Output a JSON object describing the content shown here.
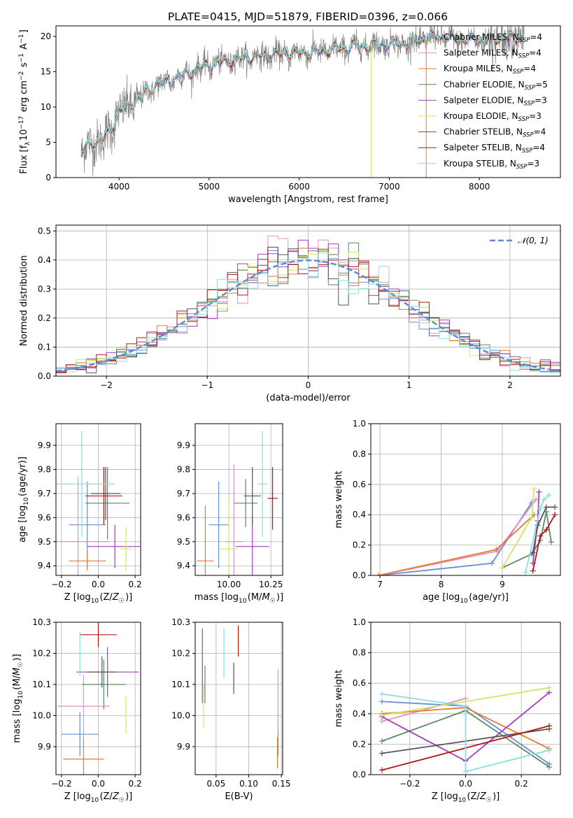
{
  "title": "PLATE=0415, MJD=51879, FIBERID=0396, z=0.066",
  "models": [
    {
      "name": "Chabrier MILES, N_SSP=4",
      "base": "Chabrier MILES, N",
      "sub": "SSP",
      "tail": "=4",
      "color": "#6a8dd6"
    },
    {
      "name": "Salpeter MILES, N_SSP=4",
      "base": "Salpeter MILES, N",
      "sub": "SSP",
      "tail": "=4",
      "color": "#e68fc6"
    },
    {
      "name": "Kroupa MILES, N_SSP=4",
      "base": "Kroupa MILES, N",
      "sub": "SSP",
      "tail": "=4",
      "color": "#e67a2e"
    },
    {
      "name": "Chabrier ELODIE, N_SSP=5",
      "base": "Chabrier ELODIE, N",
      "sub": "SSP",
      "tail": "=5",
      "color": "#5a8a66"
    },
    {
      "name": "Salpeter ELODIE, N_SSP=3",
      "base": "Salpeter ELODIE, N",
      "sub": "SSP",
      "tail": "=3",
      "color": "#a040b8"
    },
    {
      "name": "Kroupa ELODIE, N_SSP=3",
      "base": "Kroupa ELODIE, N",
      "sub": "SSP",
      "tail": "=3",
      "color": "#cfe660"
    },
    {
      "name": "Chabrier STELIB, N_SSP=4",
      "base": "Chabrier STELIB, N",
      "sub": "SSP",
      "tail": "=4",
      "color": "#555555"
    },
    {
      "name": "Salpeter STELIB, N_SSP=4",
      "base": "Salpeter STELIB, N",
      "sub": "SSP",
      "tail": "=4",
      "color": "#b01818"
    },
    {
      "name": "Kroupa STELIB, N_SSP=3",
      "base": "Kroupa STELIB, N",
      "sub": "SSP",
      "tail": "=3",
      "color": "#88dde0"
    }
  ],
  "chart_data": [
    {
      "id": "spectrum",
      "type": "line",
      "xlabel": "wavelength [Angstrom, rest frame]",
      "ylabel": "Flux [f_λ10^-17 erg cm^-2 s^-1 A^-1]",
      "xlim": [
        3300,
        8900
      ],
      "ylim": [
        0,
        21.5
      ],
      "xticks": [
        4000,
        5000,
        6000,
        7000,
        8000
      ],
      "yticks": [
        0,
        5,
        10,
        15,
        20
      ],
      "data_color": "#808080",
      "model_color": "#88dde0",
      "continuum": [
        [
          3580,
          3.5
        ],
        [
          3700,
          5
        ],
        [
          3800,
          5.2
        ],
        [
          3900,
          6.5
        ],
        [
          4000,
          9.5
        ],
        [
          4100,
          10
        ],
        [
          4200,
          11
        ],
        [
          4400,
          13
        ],
        [
          4600,
          14
        ],
        [
          4800,
          15
        ],
        [
          5000,
          16
        ],
        [
          5200,
          16.5
        ],
        [
          5400,
          17
        ],
        [
          5800,
          17.5
        ],
        [
          6200,
          17.8
        ],
        [
          6600,
          18.5
        ],
        [
          7000,
          19
        ],
        [
          7200,
          19
        ],
        [
          7500,
          20
        ],
        [
          7800,
          19.5
        ],
        [
          8200,
          19.6
        ],
        [
          8500,
          19.9
        ]
      ],
      "grid": false,
      "legend": "upper right"
    },
    {
      "id": "residuals",
      "type": "histogram",
      "xlabel": "(data-model)/error",
      "ylabel": "Normed distribution",
      "xlim": [
        -2.5,
        2.5
      ],
      "ylim": [
        0,
        0.52
      ],
      "xticks": [
        -2,
        -1,
        0,
        1,
        2
      ],
      "yticks": [
        0,
        0.1,
        0.2,
        0.3,
        0.4,
        0.5
      ],
      "bin_width": 0.1,
      "reference_curve": {
        "name": "N(0,1)",
        "color": "#5b8dd6"
      },
      "grid": true,
      "legend": "upper right"
    },
    {
      "id": "age-vs-metallicity",
      "type": "scatter",
      "xlabel": "Z [log10(Z/Z☉)]",
      "ylabel": "age [log10(age/yr)]",
      "xlim": [
        -0.23,
        0.23
      ],
      "ylim": [
        9.36,
        9.99
      ],
      "xticks": [
        -0.2,
        0.0,
        0.2
      ],
      "yticks": [
        9.4,
        9.5,
        9.6,
        9.7,
        9.8,
        9.9
      ],
      "grid": true,
      "points": [
        {
          "x": -0.06,
          "y": 9.57,
          "xerr": 0.1,
          "yerr": 0.18
        },
        {
          "x": -0.11,
          "y": 9.5,
          "xerr": 0.17,
          "yerr": 0.27
        },
        {
          "x": -0.06,
          "y": 9.42,
          "xerr": 0.1,
          "yerr": 0.04
        },
        {
          "x": 0.05,
          "y": 9.66,
          "xerr": 0.12,
          "yerr": 0.15
        },
        {
          "x": 0.09,
          "y": 9.48,
          "xerr": 0.15,
          "yerr": 0.09
        },
        {
          "x": 0.15,
          "y": 9.47,
          "xerr": 0.03,
          "yerr": 0.09
        },
        {
          "x": 0.04,
          "y": 9.7,
          "xerr": 0.08,
          "yerr": 0.11
        },
        {
          "x": 0.03,
          "y": 9.69,
          "xerr": 0.1,
          "yerr": 0.12
        },
        {
          "x": -0.09,
          "y": 9.74,
          "xerr": 0.18,
          "yerr": 0.22
        }
      ]
    },
    {
      "id": "age-vs-mass",
      "type": "scatter",
      "xlabel": "mass [log10(M/M☉)]",
      "ylabel": "",
      "xlim": [
        9.8,
        10.32
      ],
      "ylim": [
        9.36,
        9.99
      ],
      "xticks": [
        10.0,
        10.25
      ],
      "yticks": [
        9.4,
        9.5,
        9.6,
        9.7,
        9.8,
        9.9
      ],
      "grid": true,
      "points": [
        {
          "x": 9.94,
          "y": 9.57,
          "xerr": 0.06,
          "yerr": 0.18
        },
        {
          "x": 10.03,
          "y": 9.5,
          "xerr": 0.05,
          "yerr": 0.32
        },
        {
          "x": 9.86,
          "y": 9.42,
          "xerr": 0.05,
          "yerr": 0.23
        },
        {
          "x": 10.1,
          "y": 9.66,
          "xerr": 0.07,
          "yerr": 0.1
        },
        {
          "x": 10.14,
          "y": 9.48,
          "xerr": 0.1,
          "yerr": 0.13
        },
        {
          "x": 10.0,
          "y": 9.47,
          "xerr": 0.05,
          "yerr": 0.2
        },
        {
          "x": 10.14,
          "y": 9.69,
          "xerr": 0.05,
          "yerr": 0.12
        },
        {
          "x": 10.26,
          "y": 9.68,
          "xerr": 0.03,
          "yerr": 0.13
        },
        {
          "x": 10.2,
          "y": 9.74,
          "xerr": 0.03,
          "yerr": 0.22
        }
      ]
    },
    {
      "id": "mass-weight-vs-age",
      "type": "line",
      "xlabel": "age [log10(age/yr)]",
      "ylabel": "mass weight",
      "xlim": [
        6.85,
        9.95
      ],
      "ylim": [
        0,
        1
      ],
      "xticks": [
        7,
        8,
        9
      ],
      "yticks": [
        0,
        0.2,
        0.4,
        0.6,
        0.8,
        1.0
      ],
      "grid": true,
      "series": [
        {
          "x": [
            6.98,
            8.83,
            9.48
          ],
          "y": [
            0.0,
            0.08,
            0.48
          ]
        },
        {
          "x": [
            6.98,
            8.92,
            9.55
          ],
          "y": [
            0.0,
            0.16,
            0.5
          ]
        },
        {
          "x": [
            6.98,
            8.9,
            9.52
          ],
          "y": [
            0.0,
            0.17,
            0.4
          ]
        },
        {
          "x": [
            9.0,
            9.48,
            9.62,
            9.72,
            9.8
          ],
          "y": [
            0.05,
            0.14,
            0.23,
            0.42,
            0.22
          ]
        },
        {
          "x": [
            9.5,
            9.58,
            9.6
          ],
          "y": [
            0.08,
            0.36,
            0.55
          ]
        },
        {
          "x": [
            9.0,
            9.48,
            9.52
          ],
          "y": [
            0.05,
            0.38,
            0.57
          ]
        },
        {
          "x": [
            9.5,
            9.58,
            9.72,
            9.86
          ],
          "y": [
            0.15,
            0.33,
            0.45,
            0.45
          ]
        },
        {
          "x": [
            9.5,
            9.62,
            9.72,
            9.86
          ],
          "y": [
            0.03,
            0.26,
            0.3,
            0.4
          ]
        },
        {
          "x": [
            9.38,
            9.62,
            9.68,
            9.76
          ],
          "y": [
            0.02,
            0.44,
            0.5,
            0.53
          ]
        }
      ]
    },
    {
      "id": "mass-vs-metallicity",
      "type": "scatter",
      "xlabel": "Z [log10(Z/Z☉)]",
      "ylabel": "mass [log10(M/M☉)]",
      "xlim": [
        -0.23,
        0.23
      ],
      "ylim": [
        9.81,
        10.3
      ],
      "xticks": [
        -0.2,
        0.0,
        0.2
      ],
      "yticks": [
        9.9,
        10.0,
        10.1,
        10.2,
        10.3
      ],
      "grid": true,
      "points": [
        {
          "x": -0.1,
          "y": 9.94,
          "xerr": 0.1,
          "yerr": 0.07
        },
        {
          "x": -0.08,
          "y": 10.03,
          "xerr": 0.14,
          "yerr": 0.1
        },
        {
          "x": -0.08,
          "y": 9.86,
          "xerr": 0.11,
          "yerr": 0.07
        },
        {
          "x": 0.03,
          "y": 10.1,
          "xerr": 0.12,
          "yerr": 0.08
        },
        {
          "x": 0.05,
          "y": 10.14,
          "xerr": 0.17,
          "yerr": 0.08
        },
        {
          "x": 0.15,
          "y": 10.0,
          "xerr": 0.06,
          "yerr": 0.06
        },
        {
          "x": 0.02,
          "y": 10.14,
          "xerr": 0.08,
          "yerr": 0.05
        },
        {
          "x": 0.0,
          "y": 10.26,
          "xerr": 0.1,
          "yerr": 0.04
        },
        {
          "x": -0.1,
          "y": 10.2,
          "xerr": 0.1,
          "yerr": 0.07
        }
      ]
    },
    {
      "id": "mass-vs-extinction",
      "type": "scatter",
      "xlabel": "E(B-V)",
      "ylabel": "",
      "xlim": [
        0.018,
        0.152
      ],
      "ylim": [
        9.81,
        10.3
      ],
      "xticks": [
        0.05,
        0.1,
        0.15
      ],
      "yticks": [
        9.9,
        10.0,
        10.1,
        10.2,
        10.3
      ],
      "grid": true,
      "points": [
        {
          "x": 0.145,
          "y": 9.94,
          "yerr": 0.07
        },
        {
          "x": 0.145,
          "y": 10.05,
          "yerr": 0.1
        },
        {
          "x": 0.144,
          "y": 9.88,
          "yerr": 0.05
        },
        {
          "x": 0.033,
          "y": 10.1,
          "yerr": 0.06
        },
        {
          "x": 0.029,
          "y": 10.16,
          "yerr": 0.12
        },
        {
          "x": 0.031,
          "y": 10.03,
          "yerr": 0.07
        },
        {
          "x": 0.077,
          "y": 10.12,
          "yerr": 0.05
        },
        {
          "x": 0.084,
          "y": 10.24,
          "yerr": 0.05
        },
        {
          "x": 0.062,
          "y": 10.2,
          "yerr": 0.08
        }
      ]
    },
    {
      "id": "mass-weight-vs-metallicity",
      "type": "line",
      "xlabel": "Z [log10(Z/Z☉)]",
      "ylabel": "mass weight",
      "xlim": [
        -0.34,
        0.34
      ],
      "ylim": [
        0,
        1
      ],
      "xticks": [
        -0.2,
        0.0,
        0.2
      ],
      "yticks": [
        0,
        0.2,
        0.4,
        0.6,
        0.8,
        1.0
      ],
      "grid": true,
      "series": [
        {
          "x": [
            -0.3,
            0.0,
            0.3
          ],
          "y": [
            0.48,
            0.45,
            0.07
          ]
        },
        {
          "x": [
            -0.3,
            0.0
          ],
          "y": [
            0.35,
            0.5
          ]
        },
        {
          "x": [
            -0.3,
            0.0,
            0.3
          ],
          "y": [
            0.4,
            0.44,
            0.17
          ]
        },
        {
          "x": [
            -0.3,
            0.0,
            0.3
          ],
          "y": [
            0.22,
            0.42,
            0.05
          ]
        },
        {
          "x": [
            -0.3,
            0.0,
            0.3
          ],
          "y": [
            0.38,
            0.09,
            0.54
          ]
        },
        {
          "x": [
            -0.3,
            0.3
          ],
          "y": [
            0.39,
            0.57
          ]
        },
        {
          "x": [
            -0.3,
            0.3
          ],
          "y": [
            0.14,
            0.3
          ]
        },
        {
          "x": [
            -0.3,
            0.3
          ],
          "y": [
            0.03,
            0.32
          ]
        },
        {
          "x": [
            -0.3,
            0.0,
            0.0,
            0.3
          ],
          "y": [
            0.53,
            0.45,
            0.02,
            0.16
          ]
        }
      ]
    }
  ]
}
